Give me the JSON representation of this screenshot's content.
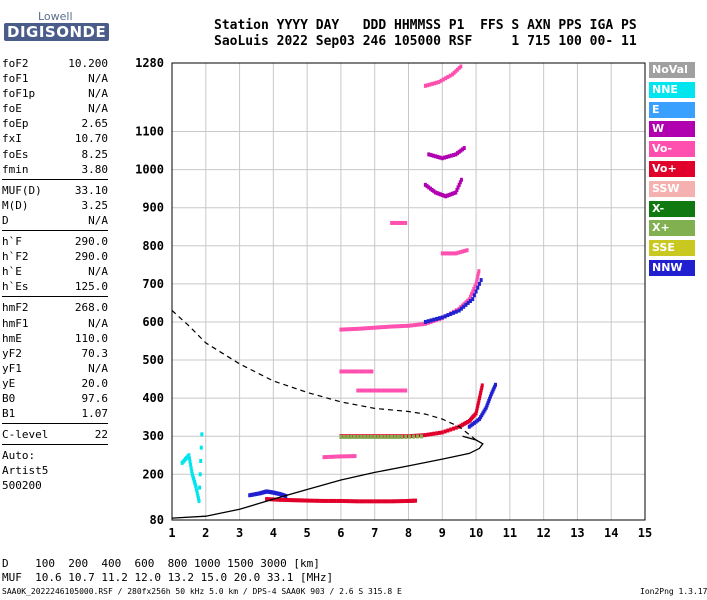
{
  "logo": {
    "top": "Lowell",
    "bottom": "DIGISONDE"
  },
  "header": {
    "row1": "Station YYYY DAY   DDD HHMMSS P1  FFS S AXN PPS IGA PS",
    "row2": "SaoLuis 2022 Sep03 246 105000 RSF     1 715 100 00- 11"
  },
  "params": [
    [
      {
        "k": "foF2",
        "v": "10.200"
      },
      {
        "k": "foF1",
        "v": "N/A"
      },
      {
        "k": "foF1p",
        "v": "N/A"
      },
      {
        "k": "foE",
        "v": "N/A"
      },
      {
        "k": "foEp",
        "v": "2.65"
      },
      {
        "k": "fxI",
        "v": "10.70"
      },
      {
        "k": "foEs",
        "v": "8.25"
      },
      {
        "k": "fmin",
        "v": "3.80"
      }
    ],
    [
      {
        "k": "MUF(D)",
        "v": "33.10"
      },
      {
        "k": "M(D)",
        "v": "3.25"
      },
      {
        "k": "D",
        "v": "N/A"
      }
    ],
    [
      {
        "k": "h`F",
        "v": "290.0"
      },
      {
        "k": "h`F2",
        "v": "290.0"
      },
      {
        "k": "h`E",
        "v": "N/A"
      },
      {
        "k": "h`Es",
        "v": "125.0"
      }
    ],
    [
      {
        "k": "hmF2",
        "v": "268.0"
      },
      {
        "k": "hmF1",
        "v": "N/A"
      },
      {
        "k": "hmE",
        "v": "110.0"
      },
      {
        "k": "yF2",
        "v": "70.3"
      },
      {
        "k": "yF1",
        "v": "N/A"
      },
      {
        "k": "yE",
        "v": "20.0"
      },
      {
        "k": "B0",
        "v": "97.6"
      },
      {
        "k": "B1",
        "v": "1.07"
      }
    ],
    [
      {
        "k": "C-level",
        "v": "22"
      }
    ],
    [
      {
        "k": "Auto:",
        "v": ""
      },
      {
        "k": "Artist5",
        "v": ""
      },
      {
        "k": "500200",
        "v": ""
      }
    ]
  ],
  "legend": [
    {
      "label": "NoVal",
      "color": "#a0a0a0"
    },
    {
      "label": "NNE",
      "color": "#00e5ee"
    },
    {
      "label": "E",
      "color": "#3aa0ff"
    },
    {
      "label": "W",
      "color": "#b000b0"
    },
    {
      "label": "Vo-",
      "color": "#ff50b0"
    },
    {
      "label": "Vo+",
      "color": "#e0002a"
    },
    {
      "label": "SSW",
      "color": "#f5b0b0"
    },
    {
      "label": "X-",
      "color": "#107a10"
    },
    {
      "label": "X+",
      "color": "#80b050"
    },
    {
      "label": "SSE",
      "color": "#c8c820"
    },
    {
      "label": "NNW",
      "color": "#2020d0"
    }
  ],
  "bottom": {
    "row1": "D    100  200  400  600  800 1000 1500 3000 [km]",
    "row2": "MUF  10.6 10.7 11.2 12.0 13.2 15.0 20.0 33.1 [MHz]"
  },
  "footer": "SAA0K_2022246105000.RSF / 280fx256h 50 kHz 5.0 km / DPS-4 SAA0K 903 / 2.6 S 315.8 E",
  "version": "Ion2Png 1.3.17",
  "chart_data": {
    "type": "scatter",
    "xlim": [
      1,
      15
    ],
    "ylim": [
      80,
      1280
    ],
    "xticks": [
      1,
      2,
      3,
      4,
      5,
      6,
      7,
      8,
      9,
      10,
      11,
      12,
      13,
      14,
      15
    ],
    "yticks": [
      80,
      200,
      300,
      400,
      500,
      600,
      700,
      800,
      900,
      1000,
      1100,
      1280
    ],
    "grid": true,
    "traces": [
      {
        "name": "Es",
        "color": "Vo+",
        "points": [
          [
            3.8,
            135
          ],
          [
            4.2,
            133
          ],
          [
            4.6,
            132
          ],
          [
            5.0,
            131
          ],
          [
            5.5,
            130
          ],
          [
            6.0,
            130
          ],
          [
            6.5,
            129
          ],
          [
            7.0,
            129
          ],
          [
            7.5,
            129
          ],
          [
            8.0,
            130
          ],
          [
            8.25,
            131
          ]
        ]
      },
      {
        "name": "Es-echo",
        "color": "NNW",
        "points": [
          [
            3.3,
            145
          ],
          [
            3.6,
            150
          ],
          [
            3.8,
            155
          ],
          [
            4.0,
            152
          ],
          [
            4.2,
            148
          ],
          [
            4.4,
            142
          ]
        ]
      },
      {
        "name": "F2-O",
        "color": "Vo+",
        "points": [
          [
            6.0,
            300
          ],
          [
            6.5,
            300
          ],
          [
            7.0,
            300
          ],
          [
            7.5,
            300
          ],
          [
            8.0,
            300
          ],
          [
            8.5,
            303
          ],
          [
            9.0,
            310
          ],
          [
            9.5,
            325
          ],
          [
            9.8,
            340
          ],
          [
            10.0,
            360
          ],
          [
            10.1,
            400
          ],
          [
            10.2,
            440
          ]
        ]
      },
      {
        "name": "F2-X",
        "color": "NNW",
        "points": [
          [
            9.8,
            325
          ],
          [
            10.1,
            345
          ],
          [
            10.3,
            375
          ],
          [
            10.45,
            410
          ],
          [
            10.6,
            440
          ]
        ]
      },
      {
        "name": "F2-green",
        "color": "X+",
        "points": [
          [
            6.0,
            298
          ],
          [
            6.6,
            298
          ],
          [
            7.2,
            298
          ],
          [
            7.8,
            298
          ],
          [
            8.5,
            300
          ]
        ]
      },
      {
        "name": "Es-2hop",
        "color": "Vo-",
        "points": [
          [
            5.5,
            245
          ],
          [
            6.0,
            247
          ],
          [
            6.5,
            248
          ]
        ]
      },
      {
        "name": "F2-2hop",
        "color": "Vo-",
        "points": [
          [
            6.0,
            580
          ],
          [
            6.5,
            582
          ],
          [
            7.0,
            585
          ],
          [
            7.5,
            588
          ],
          [
            8.0,
            590
          ],
          [
            8.5,
            595
          ],
          [
            9.0,
            610
          ],
          [
            9.5,
            635
          ],
          [
            9.8,
            660
          ],
          [
            10.0,
            700
          ],
          [
            10.1,
            740
          ]
        ]
      },
      {
        "name": "F2-2hop-X",
        "color": "NNW",
        "points": [
          [
            8.5,
            600
          ],
          [
            9.0,
            612
          ],
          [
            9.5,
            630
          ],
          [
            9.9,
            660
          ],
          [
            10.2,
            720
          ]
        ]
      },
      {
        "name": "high-1",
        "color": "W",
        "points": [
          [
            8.5,
            960
          ],
          [
            8.8,
            940
          ],
          [
            9.1,
            930
          ],
          [
            9.4,
            940
          ],
          [
            9.6,
            980
          ]
        ]
      },
      {
        "name": "high-2",
        "color": "W",
        "points": [
          [
            8.6,
            1040
          ],
          [
            9.0,
            1030
          ],
          [
            9.4,
            1040
          ],
          [
            9.7,
            1060
          ]
        ]
      },
      {
        "name": "high-3",
        "color": "Vo-",
        "points": [
          [
            8.5,
            1220
          ],
          [
            8.9,
            1230
          ],
          [
            9.3,
            1250
          ],
          [
            9.6,
            1275
          ]
        ]
      },
      {
        "name": "mid-1",
        "color": "Vo-",
        "points": [
          [
            6.0,
            470
          ],
          [
            6.5,
            470
          ],
          [
            7.0,
            470
          ]
        ]
      },
      {
        "name": "mid-2",
        "color": "Vo-",
        "points": [
          [
            6.5,
            420
          ],
          [
            7.0,
            420
          ],
          [
            7.5,
            420
          ],
          [
            8.0,
            420
          ]
        ]
      },
      {
        "name": "high-4",
        "color": "Vo-",
        "points": [
          [
            7.5,
            860
          ],
          [
            8.0,
            860
          ]
        ]
      },
      {
        "name": "high-5",
        "color": "Vo-",
        "points": [
          [
            9.0,
            780
          ],
          [
            9.4,
            780
          ],
          [
            9.8,
            790
          ]
        ]
      },
      {
        "name": "low-noise",
        "color": "NNE",
        "points": [
          [
            1.3,
            230
          ],
          [
            1.5,
            250
          ],
          [
            1.6,
            200
          ],
          [
            1.7,
            170
          ],
          [
            1.8,
            130
          ],
          [
            1.9,
            340
          ]
        ]
      }
    ],
    "profile": [
      [
        1.0,
        85
      ],
      [
        2.0,
        90
      ],
      [
        3.0,
        108
      ],
      [
        4.0,
        135
      ],
      [
        5.0,
        160
      ],
      [
        6.0,
        185
      ],
      [
        7.0,
        205
      ],
      [
        8.0,
        222
      ],
      [
        9.0,
        240
      ],
      [
        9.8,
        255
      ],
      [
        10.1,
        268
      ],
      [
        10.2,
        280
      ],
      [
        10.0,
        290
      ],
      [
        9.6,
        300
      ]
    ],
    "mufline": [
      [
        1.0,
        630
      ],
      [
        1.5,
        590
      ],
      [
        2.0,
        545
      ],
      [
        3.0,
        490
      ],
      [
        4.0,
        445
      ],
      [
        5.0,
        415
      ],
      [
        6.0,
        390
      ],
      [
        7.0,
        373
      ],
      [
        8.0,
        365
      ],
      [
        8.5,
        358
      ],
      [
        9.0,
        345
      ],
      [
        9.5,
        325
      ],
      [
        10.0,
        290
      ]
    ]
  }
}
